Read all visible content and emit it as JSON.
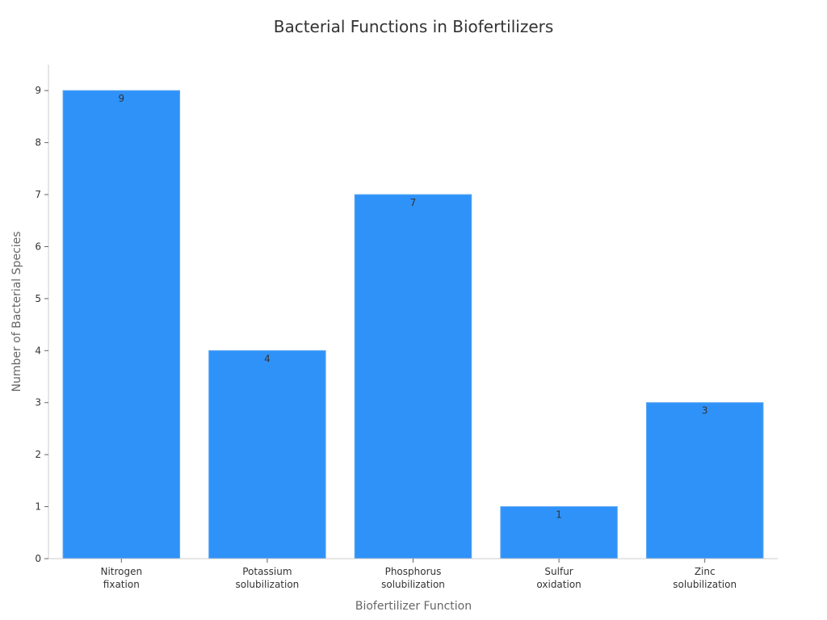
{
  "chart_data": {
    "type": "bar",
    "title": "Bacterial Functions in Biofertilizers",
    "xlabel": "Biofertilizer Function",
    "ylabel": "Number of Bacterial Species",
    "categories": [
      [
        "Nitrogen",
        "fixation"
      ],
      [
        "Potassium",
        "solubilization"
      ],
      [
        "Phosphorus",
        "solubilization"
      ],
      [
        "Sulfur",
        "oxidation"
      ],
      [
        "Zinc",
        "solubilization"
      ]
    ],
    "values": [
      9,
      4,
      7,
      1,
      3
    ],
    "ylim": [
      0,
      9.5
    ],
    "yticks": [
      0,
      1,
      2,
      3,
      4,
      5,
      6,
      7,
      8,
      9
    ],
    "grid": false,
    "bar_color": "#2f92f8"
  }
}
